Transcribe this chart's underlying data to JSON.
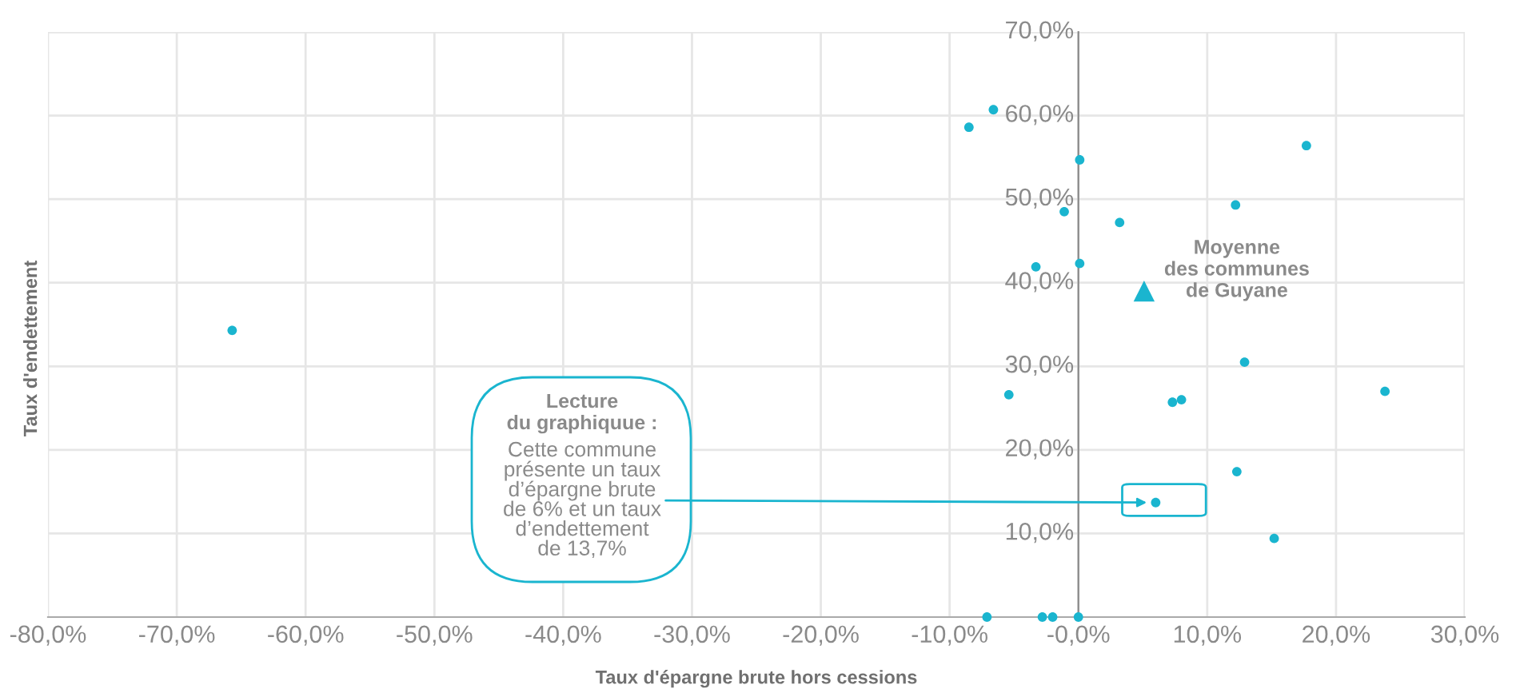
{
  "chart_data": {
    "type": "scatter",
    "xlabel": "Taux d'épargne brute hors cessions",
    "ylabel": "Taux d'endettement",
    "xlim": [
      -80,
      30
    ],
    "ylim": [
      0,
      70
    ],
    "xticks": [
      {
        "value": -80,
        "label": "-80,0%"
      },
      {
        "value": -70,
        "label": "-70,0%"
      },
      {
        "value": -60,
        "label": "-60,0%"
      },
      {
        "value": -50,
        "label": "-50,0%"
      },
      {
        "value": -40,
        "label": "-40,0%"
      },
      {
        "value": -30,
        "label": "-30,0%"
      },
      {
        "value": -20,
        "label": "-20,0%"
      },
      {
        "value": -10,
        "label": "-10,0%"
      },
      {
        "value": 0,
        "label": "-0,0%"
      },
      {
        "value": 10,
        "label": "10,0%"
      },
      {
        "value": 20,
        "label": "20,0%"
      },
      {
        "value": 30,
        "label": "30,0%"
      }
    ],
    "yticks": [
      {
        "value": 10,
        "label": "10,0%"
      },
      {
        "value": 20,
        "label": "20,0%"
      },
      {
        "value": 30,
        "label": "30,0%"
      },
      {
        "value": 40,
        "label": "40,0%"
      },
      {
        "value": 50,
        "label": "50,0%"
      },
      {
        "value": 60,
        "label": "60,0%"
      },
      {
        "value": 70,
        "label": "70,0%"
      }
    ],
    "grid": true,
    "series": [
      {
        "color": "#1ab5cf",
        "marker": "circle",
        "x": [
          -65.7,
          -8.5,
          -6.6,
          0.1,
          -1.1,
          3.2,
          -3.3,
          0.1,
          12.2,
          17.7,
          -5.4,
          7.3,
          8.0,
          12.9,
          23.8,
          12.3,
          6,
          15.2,
          -7.1,
          -2.8,
          -2.0,
          0
        ],
        "values": [
          34.3,
          58.6,
          60.7,
          54.7,
          48.5,
          47.2,
          41.9,
          42.3,
          49.3,
          56.4,
          26.6,
          25.7,
          26.0,
          30.5,
          27.0,
          17.4,
          13.7,
          9.4,
          0,
          0,
          0,
          0
        ]
      },
      {
        "name": "Moyenne\ndes communes\nde Guyane",
        "color": "#1ab5cf",
        "marker": "triangle",
        "x": [
          5.1
        ],
        "values": [
          39.0
        ]
      }
    ],
    "annotations": [
      "Lecture\ndu graphiquue :",
      {
        "text": "Cette commune\nprésente un taux\nd’épargne brute\nde 6% et un taux\nd’endettement\nde 13,7%",
        "x": 6,
        "y": 13.7
      }
    ]
  }
}
